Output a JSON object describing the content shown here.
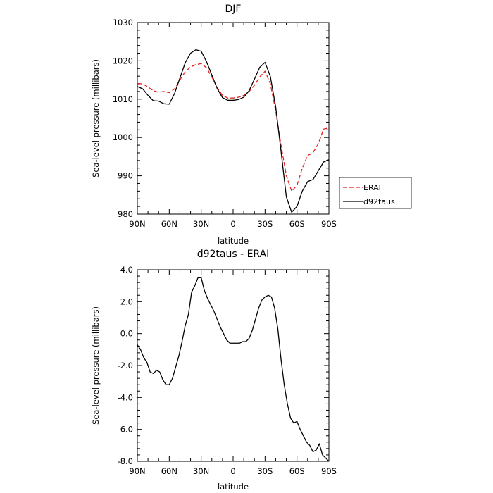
{
  "chart_data": [
    {
      "type": "line",
      "title": "DJF",
      "xlabel": "latitude",
      "ylabel": "Sea-level pressure (millibars)",
      "ylim": [
        980,
        1030
      ],
      "xlim": [
        90,
        -90
      ],
      "x_ticks": [
        90,
        60,
        30,
        0,
        -30,
        -60,
        -90
      ],
      "x_tick_labels": [
        "90N",
        "60N",
        "30N",
        "0",
        "30S",
        "60S",
        "90S"
      ],
      "y_ticks": [
        980,
        990,
        1000,
        1010,
        1020,
        1030
      ],
      "y_tick_labels": [
        "980",
        "990",
        "1000",
        "1010",
        "1020",
        "1030"
      ],
      "grid": false,
      "legend": "outside-right",
      "series": [
        {
          "name": "ERAI",
          "color": "#e8201c",
          "dash": "dashed",
          "x": [
            90,
            85,
            80,
            75,
            70,
            65,
            60,
            55,
            50,
            45,
            40,
            35,
            30,
            25,
            20,
            15,
            10,
            5,
            0,
            -5,
            -10,
            -15,
            -20,
            -25,
            -30,
            -35,
            -40,
            -45,
            -50,
            -55,
            -60,
            -65,
            -70,
            -75,
            -80,
            -85,
            -90
          ],
          "values": [
            1014.1,
            1014.0,
            1013.2,
            1012.2,
            1011.8,
            1012.0,
            1011.7,
            1012.7,
            1015.0,
            1017.2,
            1018.4,
            1019.0,
            1019.3,
            1018.2,
            1015.8,
            1013.0,
            1011.0,
            1010.3,
            1010.3,
            1010.5,
            1011.0,
            1012.0,
            1013.6,
            1015.8,
            1017.3,
            1014.0,
            1007.0,
            998.0,
            990.0,
            986.0,
            987.5,
            992.0,
            995.3,
            996.0,
            998.3,
            1002.2,
            1002.5
          ]
        },
        {
          "name": "d92taus",
          "color": "#000000",
          "dash": "solid",
          "x": [
            90,
            85,
            80,
            75,
            70,
            65,
            60,
            55,
            50,
            45,
            40,
            35,
            30,
            25,
            20,
            15,
            10,
            5,
            0,
            -5,
            -10,
            -15,
            -20,
            -25,
            -30,
            -35,
            -40,
            -45,
            -50,
            -55,
            -60,
            -65,
            -70,
            -75,
            -80,
            -85,
            -90
          ],
          "values": [
            1013.3,
            1012.7,
            1011.0,
            1009.6,
            1009.5,
            1008.8,
            1008.7,
            1011.5,
            1015.5,
            1019.5,
            1022.0,
            1022.9,
            1022.5,
            1019.8,
            1016.3,
            1012.8,
            1010.4,
            1009.7,
            1009.7,
            1009.9,
            1010.5,
            1012.2,
            1015.2,
            1018.3,
            1019.6,
            1015.9,
            1008.0,
            996.5,
            984.5,
            980.5,
            982.0,
            986.0,
            988.5,
            989.0,
            991.3,
            993.6,
            994.2
          ]
        }
      ]
    },
    {
      "type": "line",
      "title": "d92taus - ERAI",
      "xlabel": "latitude",
      "ylabel": "Sea-level pressure (millibars)",
      "ylim": [
        -8.0,
        4.0
      ],
      "xlim": [
        90,
        -90
      ],
      "x_ticks": [
        90,
        60,
        30,
        0,
        -30,
        -60,
        -90
      ],
      "x_tick_labels": [
        "90N",
        "60N",
        "30N",
        "0",
        "30S",
        "60S",
        "90S"
      ],
      "y_ticks": [
        -8,
        -6,
        -4,
        -2,
        0,
        2,
        4
      ],
      "y_tick_labels": [
        "-8.0",
        "-6.0",
        "-4.0",
        "-2.0",
        "0.0",
        "2.0",
        "4.0"
      ],
      "grid": false,
      "series": [
        {
          "color": "#000000",
          "dash": "solid",
          "x": [
            90,
            87,
            84,
            81,
            78,
            75,
            72,
            69,
            66,
            63,
            60,
            57,
            54,
            51,
            48,
            45,
            42,
            39,
            36,
            33,
            30,
            27,
            24,
            21,
            18,
            15,
            12,
            9,
            6,
            3,
            0,
            -3,
            -6,
            -9,
            -12,
            -15,
            -18,
            -21,
            -24,
            -27,
            -30,
            -33,
            -36,
            -39,
            -42,
            -45,
            -48,
            -51,
            -54,
            -57,
            -60,
            -63,
            -66,
            -69,
            -72,
            -75,
            -78,
            -81,
            -84,
            -87,
            -90
          ],
          "values": [
            -0.7,
            -1.0,
            -1.5,
            -1.8,
            -2.4,
            -2.5,
            -2.3,
            -2.4,
            -2.9,
            -3.2,
            -3.2,
            -2.8,
            -2.1,
            -1.4,
            -0.5,
            0.5,
            1.2,
            2.6,
            3.0,
            3.5,
            3.5,
            2.7,
            2.2,
            1.8,
            1.4,
            0.9,
            0.4,
            0.0,
            -0.4,
            -0.6,
            -0.6,
            -0.6,
            -0.6,
            -0.5,
            -0.5,
            -0.3,
            0.2,
            0.9,
            1.6,
            2.1,
            2.3,
            2.4,
            2.3,
            1.6,
            0.3,
            -1.6,
            -3.2,
            -4.4,
            -5.3,
            -5.6,
            -5.5,
            -6.0,
            -6.4,
            -6.8,
            -7.0,
            -7.4,
            -7.3,
            -6.9,
            -7.6,
            -7.8,
            -8.0
          ]
        }
      ]
    }
  ]
}
